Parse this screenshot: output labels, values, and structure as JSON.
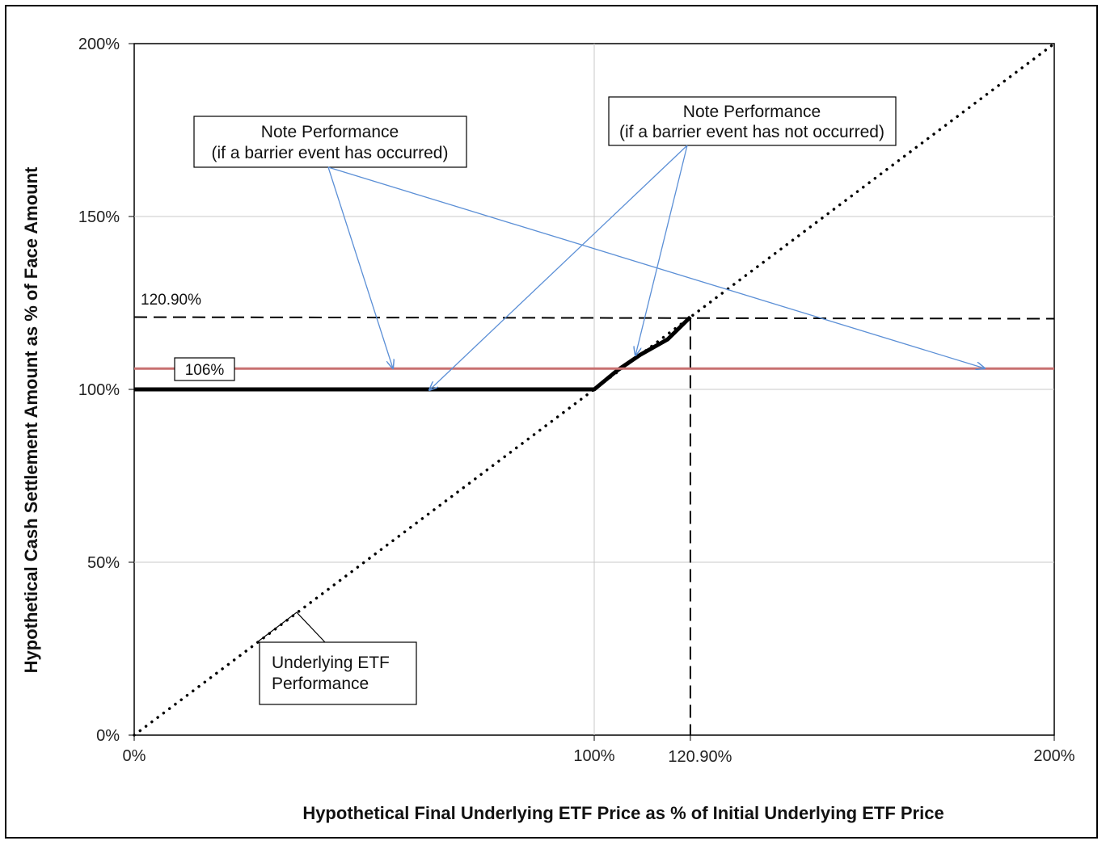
{
  "chart_data": {
    "type": "line",
    "xlabel": "Hypothetical Final Underlying ETF Price as % of Initial Underlying ETF Price",
    "ylabel": "Hypothetical Cash Settlement Amount as % of Face Amount",
    "xlim": [
      0,
      200
    ],
    "ylim": [
      0,
      200
    ],
    "x_ticks": [
      {
        "value": 0,
        "label": "0%"
      },
      {
        "value": 100,
        "label": "100%"
      },
      {
        "value": 120.9,
        "label": "120.90%"
      },
      {
        "value": 200,
        "label": "200%"
      }
    ],
    "y_ticks": [
      {
        "value": 0,
        "label": "0%"
      },
      {
        "value": 50,
        "label": "50%"
      },
      {
        "value": 100,
        "label": "100%"
      },
      {
        "value": 150,
        "label": "150%"
      },
      {
        "value": 200,
        "label": "200%"
      }
    ],
    "grid": true,
    "series": [
      {
        "name": "Underlying ETF Performance",
        "style": "dotted",
        "color": "#000000",
        "x": [
          0,
          200
        ],
        "y": [
          0,
          200
        ]
      },
      {
        "name": "Note Performance (if a barrier event has not occurred)",
        "style": "solid-thick",
        "color": "#000000",
        "x": [
          0,
          100,
          105,
          110,
          116,
          120.9
        ],
        "y": [
          100,
          100,
          105.5,
          110,
          114.5,
          120.9
        ]
      },
      {
        "name": "Note Performance (if a barrier event has occurred)",
        "style": "solid",
        "color": "#c87070",
        "x": [
          0,
          200
        ],
        "y": [
          106,
          106
        ]
      }
    ],
    "reference_lines": [
      {
        "orientation": "horizontal",
        "value": 120.9,
        "label": "120.90%",
        "style": "dashed"
      },
      {
        "orientation": "vertical",
        "value": 120.9,
        "label": "120.90%",
        "style": "dashed"
      }
    ],
    "annotations": {
      "level_106": "106%",
      "level_120": "120.90%",
      "barrier_occurred": [
        "Note Performance",
        "(if a barrier event has occurred)"
      ],
      "barrier_not_occurred": [
        "Note Performance",
        "(if a barrier event has not occurred)"
      ],
      "underlying": [
        "Underlying ETF",
        "Performance"
      ]
    },
    "colors": {
      "arrows": "#5b8fd6",
      "barrier_line": "#c87070"
    }
  }
}
